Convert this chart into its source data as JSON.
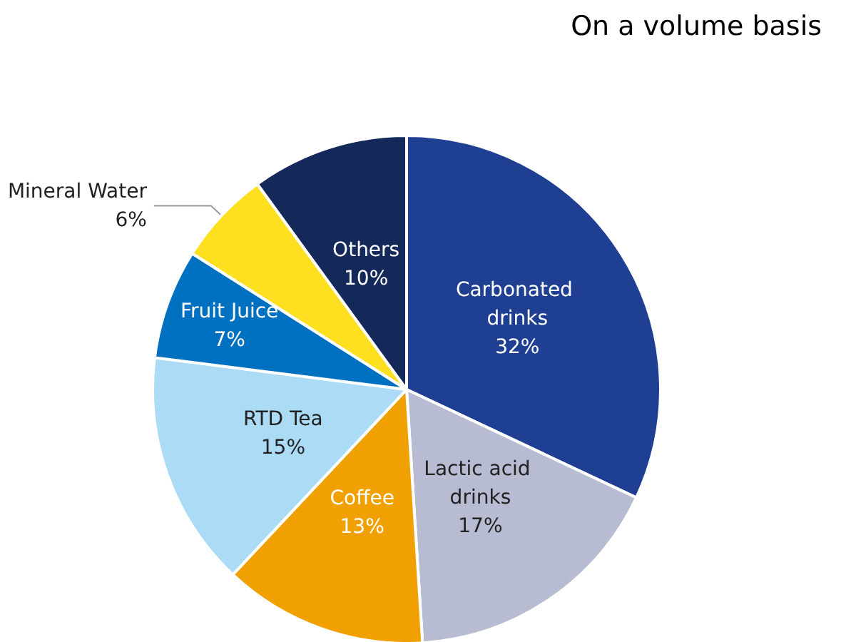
{
  "chart_data": {
    "type": "pie",
    "title": "On a volume basis",
    "categories": [
      "Carbonated drinks",
      "Lactic acid drinks",
      "Coffee",
      "RTD Tea",
      "Fruit Juice",
      "Mineral Water",
      "Others"
    ],
    "values": [
      32,
      17,
      13,
      15,
      7,
      6,
      10
    ],
    "colors": [
      "#1f3f93",
      "#b7bcd2",
      "#f0a000",
      "#acdcf5",
      "#0070c0",
      "#ffe020",
      "#14285a"
    ],
    "value_labels": [
      "32%",
      "17%",
      "13%",
      "15%",
      "7%",
      "6%",
      "10%"
    ],
    "legend": false
  }
}
